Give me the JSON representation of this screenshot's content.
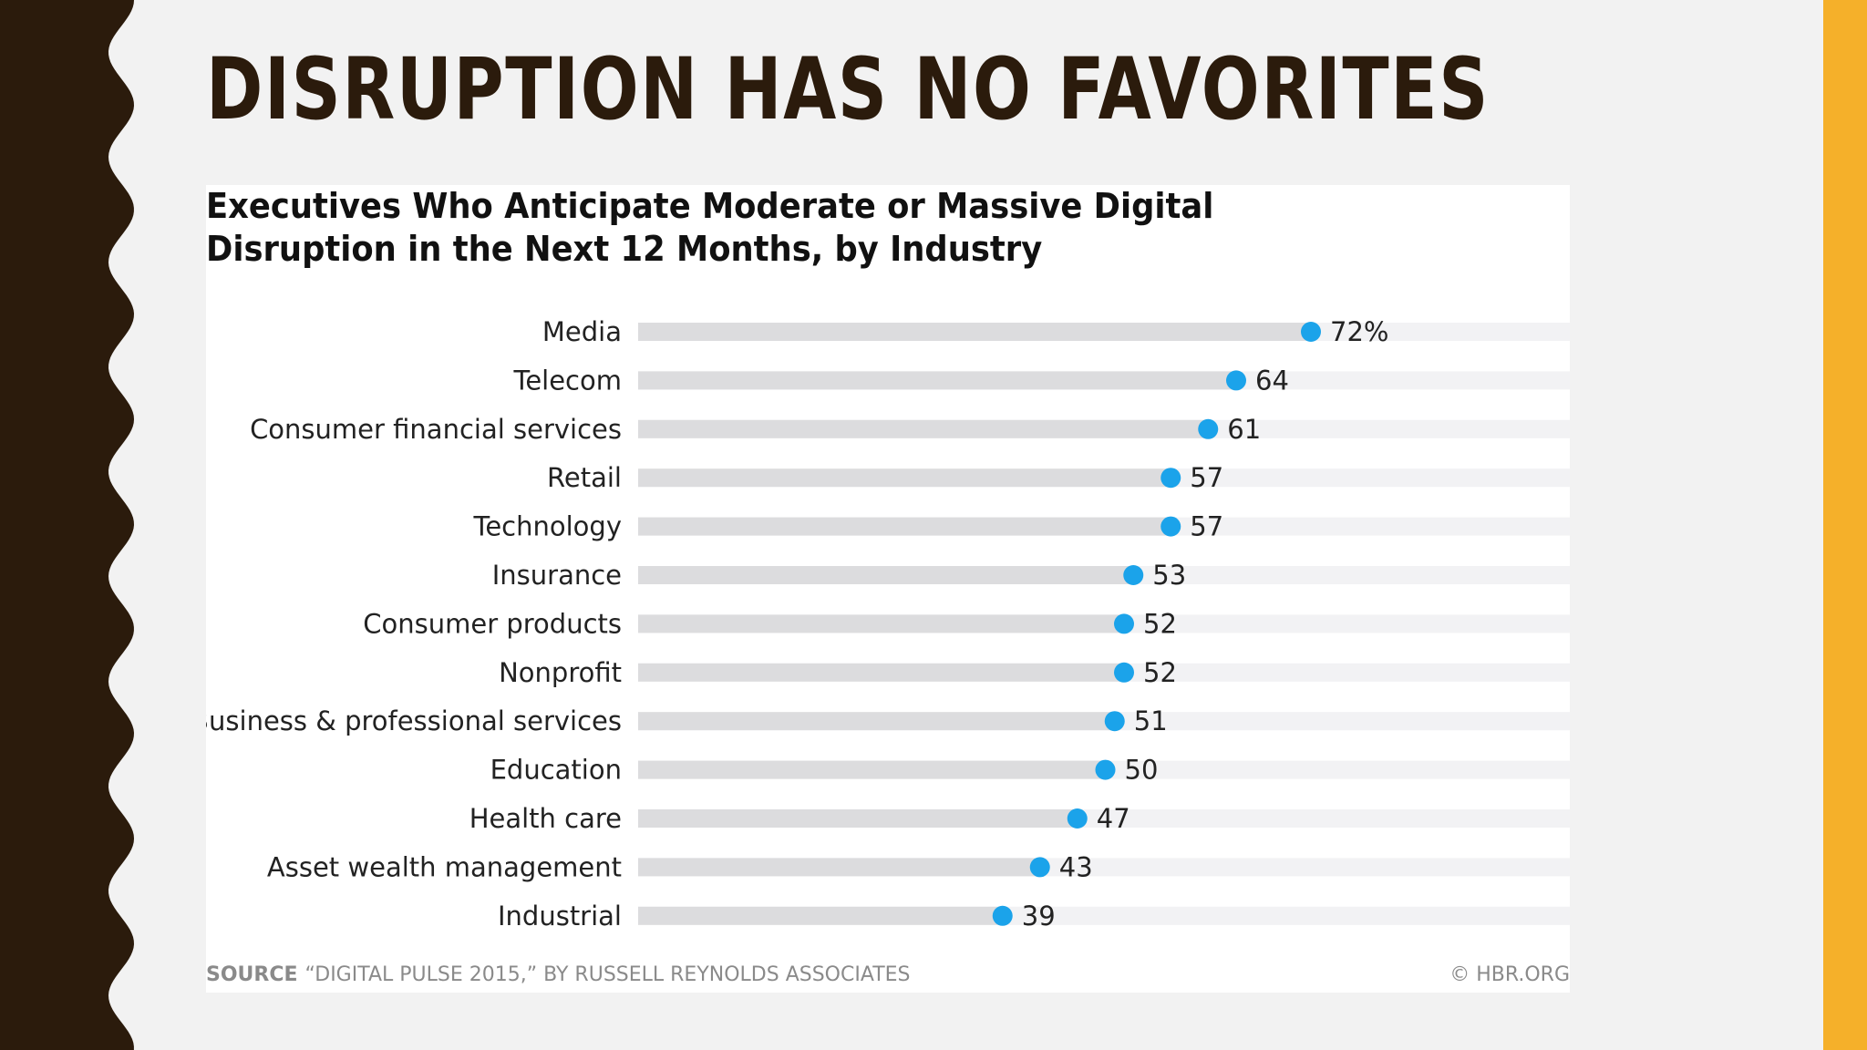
{
  "slide": {
    "title": "DISRUPTION HAS NO FAVORITES",
    "colors": {
      "background": "#f2f2f2",
      "left_band": "#2b1b0c",
      "right_band": "#f5b02a",
      "title": "#2b1b0c"
    }
  },
  "chart": {
    "title": "Executives Who Anticipate Moderate or Massive Digital Disruption in the Next 12 Months, by Industry",
    "source_label": "SOURCE",
    "source_text": "“DIGITAL PULSE 2015,” BY RUSSELL REYNOLDS ASSOCIATES",
    "credit": "© HBR.ORG"
  },
  "chart_data": {
    "type": "bar",
    "title": "Executives Who Anticipate Moderate or Massive Digital Disruption in the Next 12 Months, by Industry",
    "xlabel": "",
    "ylabel": "",
    "categories": [
      "Media",
      "Telecom",
      "Consumer financial services",
      "Retail",
      "Technology",
      "Insurance",
      "Consumer products",
      "Nonprofit",
      "Business & professional services",
      "Education",
      "Health care",
      "Asset wealth management",
      "Industrial"
    ],
    "values": [
      72,
      64,
      61,
      57,
      57,
      53,
      52,
      52,
      51,
      50,
      47,
      43,
      39
    ],
    "value_labels": [
      "72%",
      "64",
      "61",
      "57",
      "57",
      "53",
      "52",
      "52",
      "51",
      "50",
      "47",
      "43",
      "39"
    ],
    "unit": "%",
    "xlim": [
      0,
      100
    ],
    "orientation": "horizontal",
    "grid": false,
    "legend": "none",
    "colors": {
      "dot": "#1ba3ea",
      "bar": "#dcdcde",
      "track": "#f2f2f4"
    }
  }
}
